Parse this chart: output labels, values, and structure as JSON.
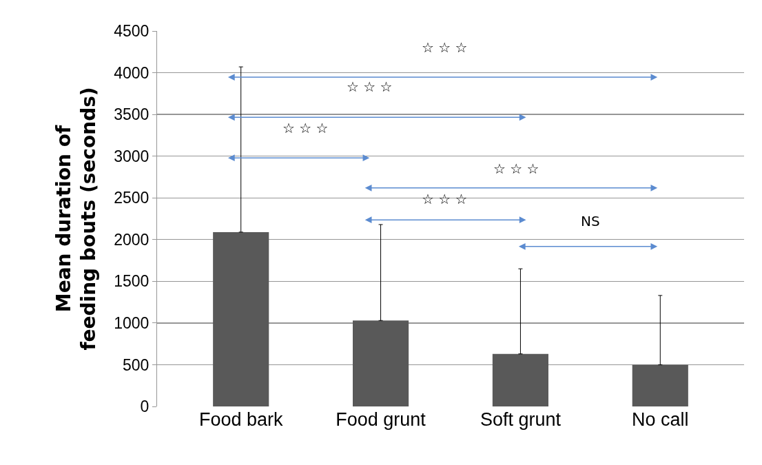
{
  "chart_data": {
    "type": "bar",
    "ylabel": "Mean duration of feeding bouts (seconds)",
    "categories": [
      "Food bark",
      "Food grunt",
      "Soft grunt",
      "No call"
    ],
    "values": [
      2090,
      1030,
      630,
      500
    ],
    "errors": [
      [
        2090,
        4070
      ],
      [
        1030,
        2180
      ],
      [
        630,
        1650
      ],
      [
        500,
        1330
      ]
    ],
    "color": "#595959",
    "ylim": [
      0,
      4500
    ],
    "yticks": [
      0,
      500,
      1000,
      1500,
      2000,
      2500,
      3000,
      3500,
      4000,
      4500
    ],
    "grid": "y",
    "annotations": [
      "☆ ☆ ☆",
      "☆ ☆ ☆",
      "☆ ☆ ☆",
      "☆ ☆ ☆",
      "☆ ☆ ☆",
      "NS"
    ]
  }
}
